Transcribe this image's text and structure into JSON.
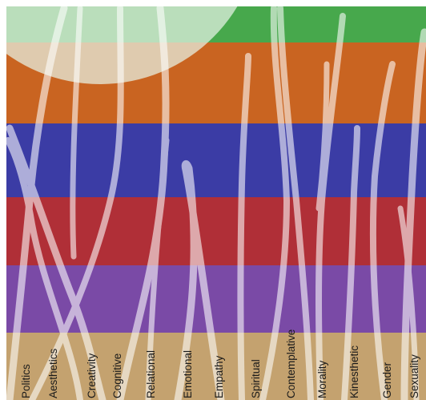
{
  "bands": [
    {
      "id": "green",
      "color": "#47a84c"
    },
    {
      "id": "orange",
      "color": "#c96421"
    },
    {
      "id": "blue",
      "color": "#3b3ca5"
    },
    {
      "id": "red",
      "color": "#b02f37"
    },
    {
      "id": "purple",
      "color": "#7a4aa6"
    },
    {
      "id": "tan",
      "color": "#c4a26f"
    }
  ],
  "labels": [
    "Politics",
    "Aesthetics",
    "Creativity",
    "Cognitive",
    "Relational",
    "Emotional",
    "Empathy",
    "Spiritual",
    "Contemplative",
    "Morality",
    "Kinesthetic",
    "Gender",
    "Sexuality"
  ],
  "colors": {
    "stroke": "#ffffff",
    "corner_circle": "#e8f3e6"
  }
}
